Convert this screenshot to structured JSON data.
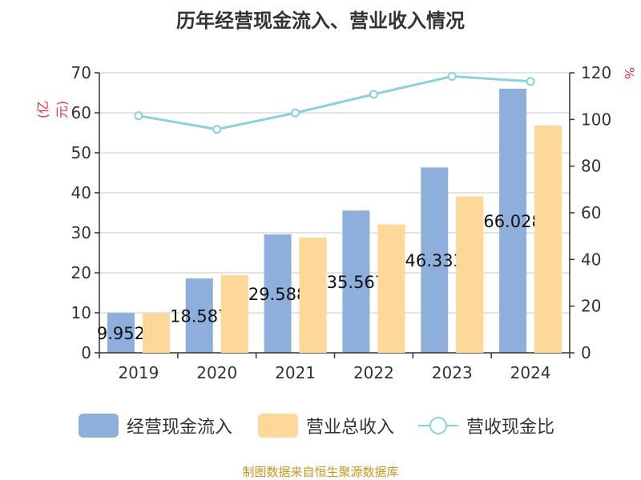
{
  "title": "历年经营现金流入、营业收入情况",
  "source": "制图数据来自恒生聚源数据库",
  "chart_data": {
    "type": "bar",
    "categories": [
      "2019",
      "2020",
      "2021",
      "2022",
      "2023",
      "2024"
    ],
    "left_axis": {
      "unit": "(亿元)",
      "ylim": [
        0,
        70
      ],
      "ticks": [
        0,
        10,
        20,
        30,
        40,
        50,
        60,
        70
      ]
    },
    "right_axis": {
      "unit": "%",
      "ylim": [
        0,
        120
      ],
      "ticks": [
        0,
        20,
        40,
        60,
        80,
        100,
        120
      ]
    },
    "series": [
      {
        "name": "经营现金流入",
        "type": "bar",
        "axis": "left",
        "color": "#8eaedb",
        "values": [
          9.952,
          18.587,
          29.588,
          35.567,
          46.333,
          66.028
        ],
        "labels": [
          "9.952",
          "18.587",
          "29.588",
          "35.567",
          "46.333",
          "66.028"
        ]
      },
      {
        "name": "营业总收入",
        "type": "bar",
        "axis": "left",
        "color": "#fdd899",
        "values": [
          9.8,
          19.4,
          28.8,
          32.1,
          39.1,
          56.8
        ]
      },
      {
        "name": "营收现金比",
        "type": "line",
        "axis": "right",
        "color": "#86d3d8",
        "values": [
          101.6,
          95.8,
          102.8,
          110.8,
          118.5,
          116.3
        ]
      }
    ],
    "grid": true,
    "legend": "bottom"
  }
}
